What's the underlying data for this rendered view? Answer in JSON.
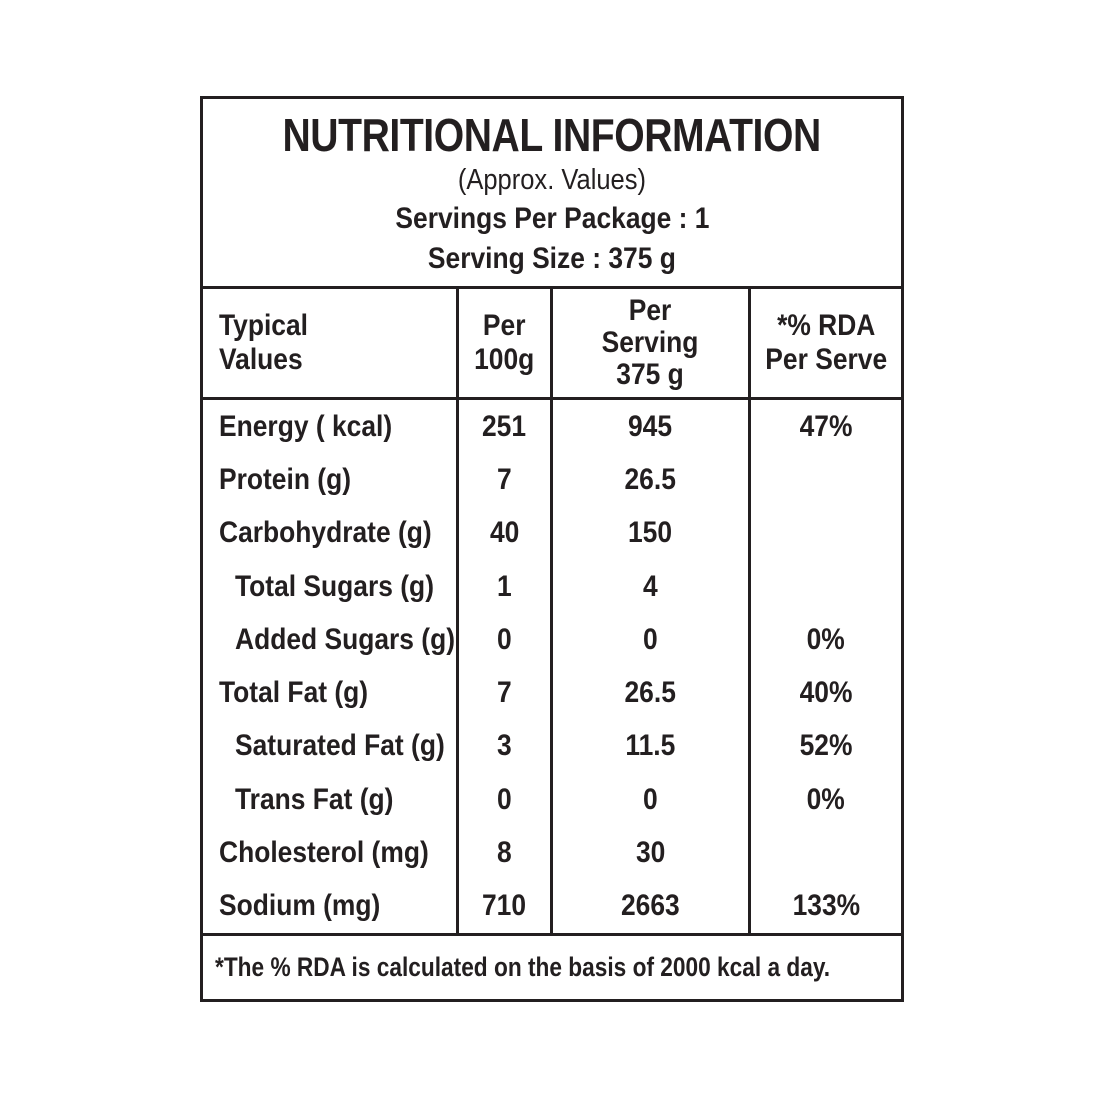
{
  "label": {
    "title": "NUTRITIONAL INFORMATION",
    "subtitle": "(Approx. Values)",
    "servings_per_package": "Servings Per Package : 1",
    "serving_size": "Serving Size : 375 g"
  },
  "table": {
    "headers": {
      "col1_line1": "Typical",
      "col1_line2": "Values",
      "col2_line1": "Per",
      "col2_line2": "100g",
      "col3_line1": "Per",
      "col3_line2": "Serving",
      "col3_line3": "375 g",
      "col4_line1": "*% RDA",
      "col4_line2": "Per Serve"
    },
    "rows": [
      {
        "label": "Energy ( kcal)",
        "per_100g": "251",
        "per_serving": "945",
        "rda_per_serve": "47%"
      },
      {
        "label": "Protein (g)",
        "per_100g": "7",
        "per_serving": "26.5",
        "rda_per_serve": ""
      },
      {
        "label": "Carbohydrate (g)",
        "per_100g": "40",
        "per_serving": "150",
        "rda_per_serve": ""
      },
      {
        "label": "Total Sugars (g)",
        "per_100g": "1",
        "per_serving": "4",
        "rda_per_serve": ""
      },
      {
        "label": "Added Sugars (g)",
        "per_100g": "0",
        "per_serving": "0",
        "rda_per_serve": "0%"
      },
      {
        "label": "Total Fat (g)",
        "per_100g": "7",
        "per_serving": "26.5",
        "rda_per_serve": "40%"
      },
      {
        "label": "Saturated Fat (g)",
        "per_100g": "3",
        "per_serving": "11.5",
        "rda_per_serve": "52%"
      },
      {
        "label": "Trans Fat (g)",
        "per_100g": "0",
        "per_serving": "0",
        "rda_per_serve": "0%"
      },
      {
        "label": "Cholesterol (mg)",
        "per_100g": "8",
        "per_serving": "30",
        "rda_per_serve": ""
      },
      {
        "label": "Sodium (mg)",
        "per_100g": "710",
        "per_serving": "2663",
        "rda_per_serve": "133%"
      }
    ]
  },
  "footnote": "*The % RDA is calculated on the basis of 2000 kcal a day.",
  "colors": {
    "text": "#231f20",
    "border": "#231f20",
    "background": "#ffffff"
  }
}
